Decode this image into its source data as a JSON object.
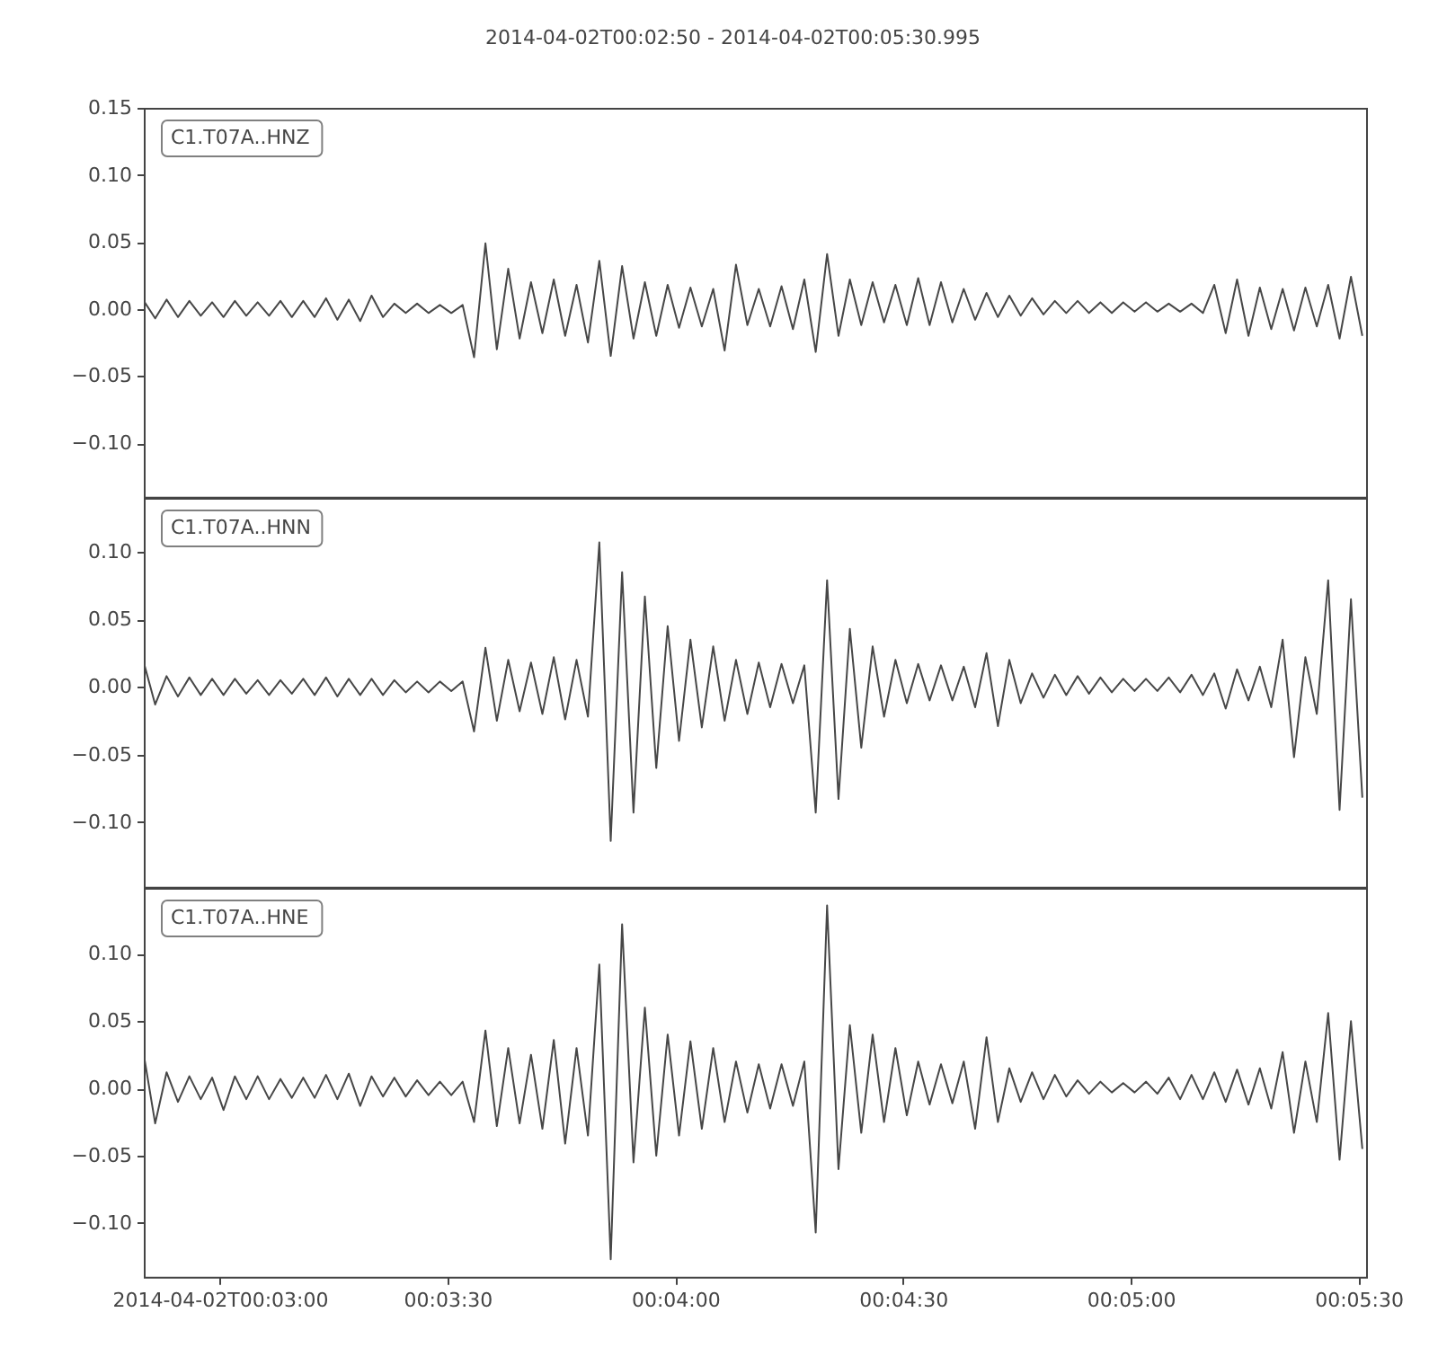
{
  "chart_data": [
    {
      "type": "line",
      "title": "2014-04-02T00:02:50  -  2014-04-02T00:05:30.995",
      "x": [
        "2014-04-02T00:02:50",
        "2014-04-02T00:02:51.5",
        "2014-04-02T00:02:53",
        "2014-04-02T00:02:54.5",
        "2014-04-02T00:02:56",
        "2014-04-02T00:02:57.5",
        "2014-04-02T00:02:59",
        "2014-04-02T00:03:00.5",
        "2014-04-02T00:03:02",
        "2014-04-02T00:03:03.5",
        "2014-04-02T00:03:05",
        "2014-04-02T00:03:06.5",
        "2014-04-02T00:03:08",
        "2014-04-02T00:03:09.5",
        "2014-04-02T00:03:11",
        "2014-04-02T00:03:12.5",
        "2014-04-02T00:03:14",
        "2014-04-02T00:03:15.5",
        "2014-04-02T00:03:17",
        "2014-04-02T00:03:18.5",
        "2014-04-02T00:03:20",
        "2014-04-02T00:03:21.5",
        "2014-04-02T00:03:23",
        "2014-04-02T00:03:24.5",
        "2014-04-02T00:03:26",
        "2014-04-02T00:03:27.5",
        "2014-04-02T00:03:29",
        "2014-04-02T00:03:30.5",
        "2014-04-02T00:03:32",
        "2014-04-02T00:03:33.5",
        "2014-04-02T00:03:35",
        "2014-04-02T00:03:36.5",
        "2014-04-02T00:03:38",
        "2014-04-02T00:03:39.5",
        "2014-04-02T00:03:41",
        "2014-04-02T00:03:42.5",
        "2014-04-02T00:03:44",
        "2014-04-02T00:03:45.5",
        "2014-04-02T00:03:47",
        "2014-04-02T00:03:48.5",
        "2014-04-02T00:03:50",
        "2014-04-02T00:03:51.5",
        "2014-04-02T00:03:53",
        "2014-04-02T00:03:54.5",
        "2014-04-02T00:03:56",
        "2014-04-02T00:03:57.5",
        "2014-04-02T00:03:59",
        "2014-04-02T00:04:00.5",
        "2014-04-02T00:04:02",
        "2014-04-02T00:04:03.5",
        "2014-04-02T00:04:05",
        "2014-04-02T00:04:06.5",
        "2014-04-02T00:04:08",
        "2014-04-02T00:04:09.5",
        "2014-04-02T00:04:11",
        "2014-04-02T00:04:12.5",
        "2014-04-02T00:04:14",
        "2014-04-02T00:04:15.5",
        "2014-04-02T00:04:17",
        "2014-04-02T00:04:18.5",
        "2014-04-02T00:04:20",
        "2014-04-02T00:04:21.5",
        "2014-04-02T00:04:23",
        "2014-04-02T00:04:24.5",
        "2014-04-02T00:04:26",
        "2014-04-02T00:04:27.5",
        "2014-04-02T00:04:29",
        "2014-04-02T00:04:30.5",
        "2014-04-02T00:04:32",
        "2014-04-02T00:04:33.5",
        "2014-04-02T00:04:35",
        "2014-04-02T00:04:36.5",
        "2014-04-02T00:04:38",
        "2014-04-02T00:04:39.5",
        "2014-04-02T00:04:41",
        "2014-04-02T00:04:42.5",
        "2014-04-02T00:04:44",
        "2014-04-02T00:04:45.5",
        "2014-04-02T00:04:47",
        "2014-04-02T00:04:48.5",
        "2014-04-02T00:04:50",
        "2014-04-02T00:04:51.5",
        "2014-04-02T00:04:53",
        "2014-04-02T00:04:54.5",
        "2014-04-02T00:04:56",
        "2014-04-02T00:04:57.5",
        "2014-04-02T00:04:59",
        "2014-04-02T00:05:00.5",
        "2014-04-02T00:05:02",
        "2014-04-02T00:05:03.5",
        "2014-04-02T00:05:05",
        "2014-04-02T00:05:06.5",
        "2014-04-02T00:05:08",
        "2014-04-02T00:05:09.5",
        "2014-04-02T00:05:11",
        "2014-04-02T00:05:12.5",
        "2014-04-02T00:05:14",
        "2014-04-02T00:05:15.5",
        "2014-04-02T00:05:17",
        "2014-04-02T00:05:18.5",
        "2014-04-02T00:05:20",
        "2014-04-02T00:05:21.5",
        "2014-04-02T00:05:23",
        "2014-04-02T00:05:24.5",
        "2014-04-02T00:05:26",
        "2014-04-02T00:05:27.5",
        "2014-04-02T00:05:29",
        "2014-04-02T00:05:30.5"
      ],
      "series": [
        {
          "name": "C1.T07A..HNZ",
          "color": "#474747",
          "values": [
            0.006,
            -0.007,
            0.007,
            -0.006,
            0.006,
            -0.005,
            0.005,
            -0.006,
            0.006,
            -0.005,
            0.005,
            -0.005,
            0.006,
            -0.006,
            0.006,
            -0.006,
            0.008,
            -0.008,
            0.007,
            -0.009,
            0.01,
            -0.006,
            0.004,
            -0.003,
            0.004,
            -0.003,
            0.003,
            -0.003,
            0.003,
            -0.036,
            0.049,
            -0.03,
            0.03,
            -0.022,
            0.02,
            -0.018,
            0.022,
            -0.02,
            0.018,
            -0.025,
            0.036,
            -0.035,
            0.032,
            -0.022,
            0.02,
            -0.02,
            0.018,
            -0.014,
            0.016,
            -0.013,
            0.015,
            -0.031,
            0.033,
            -0.012,
            0.015,
            -0.013,
            0.017,
            -0.015,
            0.022,
            -0.032,
            0.041,
            -0.02,
            0.022,
            -0.012,
            0.02,
            -0.01,
            0.018,
            -0.012,
            0.023,
            -0.012,
            0.02,
            -0.01,
            0.015,
            -0.008,
            0.012,
            -0.006,
            0.01,
            -0.005,
            0.008,
            -0.004,
            0.006,
            -0.003,
            0.006,
            -0.003,
            0.005,
            -0.003,
            0.005,
            -0.002,
            0.005,
            -0.002,
            0.004,
            -0.002,
            0.004,
            -0.003,
            0.018,
            -0.018,
            0.022,
            -0.02,
            0.016,
            -0.015,
            0.015,
            -0.016,
            0.016,
            -0.013,
            0.018,
            -0.022,
            0.024,
            -0.02
          ]
        }
      ],
      "xlim": [
        "2014-04-02T00:02:50",
        "2014-04-02T00:05:30.995"
      ],
      "ylim": [
        -0.14,
        0.15
      ],
      "yticks": [
        {
          "value": -0.1,
          "label": "−0.10"
        },
        {
          "value": -0.05,
          "label": "−0.05"
        },
        {
          "value": 0,
          "label": "0.00"
        },
        {
          "value": 0.05,
          "label": "0.05"
        },
        {
          "value": 0.1,
          "label": "0.10"
        },
        {
          "value": 0.15,
          "label": "0.15"
        }
      ],
      "tick_labels": "y"
    },
    {
      "type": "line",
      "x": [
        "2014-04-02T00:02:50",
        "2014-04-02T00:02:51.5",
        "2014-04-02T00:02:53",
        "2014-04-02T00:02:54.5",
        "2014-04-02T00:02:56",
        "2014-04-02T00:02:57.5",
        "2014-04-02T00:02:59",
        "2014-04-02T00:03:00.5",
        "2014-04-02T00:03:02",
        "2014-04-02T00:03:03.5",
        "2014-04-02T00:03:05",
        "2014-04-02T00:03:06.5",
        "2014-04-02T00:03:08",
        "2014-04-02T00:03:09.5",
        "2014-04-02T00:03:11",
        "2014-04-02T00:03:12.5",
        "2014-04-02T00:03:14",
        "2014-04-02T00:03:15.5",
        "2014-04-02T00:03:17",
        "2014-04-02T00:03:18.5",
        "2014-04-02T00:03:20",
        "2014-04-02T00:03:21.5",
        "2014-04-02T00:03:23",
        "2014-04-02T00:03:24.5",
        "2014-04-02T00:03:26",
        "2014-04-02T00:03:27.5",
        "2014-04-02T00:03:29",
        "2014-04-02T00:03:30.5",
        "2014-04-02T00:03:32",
        "2014-04-02T00:03:33.5",
        "2014-04-02T00:03:35",
        "2014-04-02T00:03:36.5",
        "2014-04-02T00:03:38",
        "2014-04-02T00:03:39.5",
        "2014-04-02T00:03:41",
        "2014-04-02T00:03:42.5",
        "2014-04-02T00:03:44",
        "2014-04-02T00:03:45.5",
        "2014-04-02T00:03:47",
        "2014-04-02T00:03:48.5",
        "2014-04-02T00:03:50",
        "2014-04-02T00:03:51.5",
        "2014-04-02T00:03:53",
        "2014-04-02T00:03:54.5",
        "2014-04-02T00:03:56",
        "2014-04-02T00:03:57.5",
        "2014-04-02T00:03:59",
        "2014-04-02T00:04:00.5",
        "2014-04-02T00:04:02",
        "2014-04-02T00:04:03.5",
        "2014-04-02T00:04:05",
        "2014-04-02T00:04:06.5",
        "2014-04-02T00:04:08",
        "2014-04-02T00:04:09.5",
        "2014-04-02T00:04:11",
        "2014-04-02T00:04:12.5",
        "2014-04-02T00:04:14",
        "2014-04-02T00:04:15.5",
        "2014-04-02T00:04:17",
        "2014-04-02T00:04:18.5",
        "2014-04-02T00:04:20",
        "2014-04-02T00:04:21.5",
        "2014-04-02T00:04:23",
        "2014-04-02T00:04:24.5",
        "2014-04-02T00:04:26",
        "2014-04-02T00:04:27.5",
        "2014-04-02T00:04:29",
        "2014-04-02T00:04:30.5",
        "2014-04-02T00:04:32",
        "2014-04-02T00:04:33.5",
        "2014-04-02T00:04:35",
        "2014-04-02T00:04:36.5",
        "2014-04-02T00:04:38",
        "2014-04-02T00:04:39.5",
        "2014-04-02T00:04:41",
        "2014-04-02T00:04:42.5",
        "2014-04-02T00:04:44",
        "2014-04-02T00:04:45.5",
        "2014-04-02T00:04:47",
        "2014-04-02T00:04:48.5",
        "2014-04-02T00:04:50",
        "2014-04-02T00:04:51.5",
        "2014-04-02T00:04:53",
        "2014-04-02T00:04:54.5",
        "2014-04-02T00:04:56",
        "2014-04-02T00:04:57.5",
        "2014-04-02T00:04:59",
        "2014-04-02T00:05:00.5",
        "2014-04-02T00:05:02",
        "2014-04-02T00:05:03.5",
        "2014-04-02T00:05:05",
        "2014-04-02T00:05:06.5",
        "2014-04-02T00:05:08",
        "2014-04-02T00:05:09.5",
        "2014-04-02T00:05:11",
        "2014-04-02T00:05:12.5",
        "2014-04-02T00:05:14",
        "2014-04-02T00:05:15.5",
        "2014-04-02T00:05:17",
        "2014-04-02T00:05:18.5",
        "2014-04-02T00:05:20",
        "2014-04-02T00:05:21.5",
        "2014-04-02T00:05:23",
        "2014-04-02T00:05:24.5",
        "2014-04-02T00:05:26",
        "2014-04-02T00:05:27.5",
        "2014-04-02T00:05:29",
        "2014-04-02T00:05:30.5"
      ],
      "series": [
        {
          "name": "C1.T07A..HNN",
          "color": "#474747",
          "values": [
            0.018,
            -0.013,
            0.008,
            -0.007,
            0.007,
            -0.006,
            0.006,
            -0.006,
            0.006,
            -0.005,
            0.005,
            -0.006,
            0.005,
            -0.005,
            0.006,
            -0.006,
            0.007,
            -0.007,
            0.006,
            -0.006,
            0.006,
            -0.006,
            0.005,
            -0.004,
            0.004,
            -0.004,
            0.004,
            -0.003,
            0.004,
            -0.033,
            0.029,
            -0.025,
            0.02,
            -0.018,
            0.018,
            -0.02,
            0.022,
            -0.024,
            0.02,
            -0.022,
            0.107,
            -0.114,
            0.085,
            -0.093,
            0.067,
            -0.06,
            0.045,
            -0.04,
            0.035,
            -0.03,
            0.03,
            -0.025,
            0.02,
            -0.02,
            0.018,
            -0.015,
            0.017,
            -0.012,
            0.016,
            -0.093,
            0.079,
            -0.083,
            0.043,
            -0.045,
            0.03,
            -0.022,
            0.02,
            -0.012,
            0.017,
            -0.01,
            0.016,
            -0.01,
            0.015,
            -0.015,
            0.025,
            -0.029,
            0.02,
            -0.012,
            0.01,
            -0.008,
            0.009,
            -0.006,
            0.008,
            -0.005,
            0.007,
            -0.004,
            0.006,
            -0.003,
            0.006,
            -0.003,
            0.007,
            -0.004,
            0.009,
            -0.006,
            0.01,
            -0.016,
            0.013,
            -0.01,
            0.015,
            -0.015,
            0.035,
            -0.052,
            0.022,
            -0.02,
            0.079,
            -0.091,
            0.065,
            -0.082
          ]
        }
      ],
      "xlim": [
        "2014-04-02T00:02:50",
        "2014-04-02T00:05:30.995"
      ],
      "ylim": [
        -0.148,
        0.14
      ],
      "yticks": [
        {
          "value": -0.1,
          "label": "−0.10"
        },
        {
          "value": -0.05,
          "label": "−0.05"
        },
        {
          "value": 0,
          "label": "0.00"
        },
        {
          "value": 0.05,
          "label": "0.05"
        },
        {
          "value": 0.1,
          "label": "0.10"
        }
      ],
      "tick_labels": "y"
    },
    {
      "type": "line",
      "x": [
        "2014-04-02T00:02:50",
        "2014-04-02T00:02:51.5",
        "2014-04-02T00:02:53",
        "2014-04-02T00:02:54.5",
        "2014-04-02T00:02:56",
        "2014-04-02T00:02:57.5",
        "2014-04-02T00:02:59",
        "2014-04-02T00:03:00.5",
        "2014-04-02T00:03:02",
        "2014-04-02T00:03:03.5",
        "2014-04-02T00:03:05",
        "2014-04-02T00:03:06.5",
        "2014-04-02T00:03:08",
        "2014-04-02T00:03:09.5",
        "2014-04-02T00:03:11",
        "2014-04-02T00:03:12.5",
        "2014-04-02T00:03:14",
        "2014-04-02T00:03:15.5",
        "2014-04-02T00:03:17",
        "2014-04-02T00:03:18.5",
        "2014-04-02T00:03:20",
        "2014-04-02T00:03:21.5",
        "2014-04-02T00:03:23",
        "2014-04-02T00:03:24.5",
        "2014-04-02T00:03:26",
        "2014-04-02T00:03:27.5",
        "2014-04-02T00:03:29",
        "2014-04-02T00:03:30.5",
        "2014-04-02T00:03:32",
        "2014-04-02T00:03:33.5",
        "2014-04-02T00:03:35",
        "2014-04-02T00:03:36.5",
        "2014-04-02T00:03:38",
        "2014-04-02T00:03:39.5",
        "2014-04-02T00:03:41",
        "2014-04-02T00:03:42.5",
        "2014-04-02T00:03:44",
        "2014-04-02T00:03:45.5",
        "2014-04-02T00:03:47",
        "2014-04-02T00:03:48.5",
        "2014-04-02T00:03:50",
        "2014-04-02T00:03:51.5",
        "2014-04-02T00:03:53",
        "2014-04-02T00:03:54.5",
        "2014-04-02T00:03:56",
        "2014-04-02T00:03:57.5",
        "2014-04-02T00:03:59",
        "2014-04-02T00:04:00.5",
        "2014-04-02T00:04:02",
        "2014-04-02T00:04:03.5",
        "2014-04-02T00:04:05",
        "2014-04-02T00:04:06.5",
        "2014-04-02T00:04:08",
        "2014-04-02T00:04:09.5",
        "2014-04-02T00:04:11",
        "2014-04-02T00:04:12.5",
        "2014-04-02T00:04:14",
        "2014-04-02T00:04:15.5",
        "2014-04-02T00:04:17",
        "2014-04-02T00:04:18.5",
        "2014-04-02T00:04:20",
        "2014-04-02T00:04:21.5",
        "2014-04-02T00:04:23",
        "2014-04-02T00:04:24.5",
        "2014-04-02T00:04:26",
        "2014-04-02T00:04:27.5",
        "2014-04-02T00:04:29",
        "2014-04-02T00:04:30.5",
        "2014-04-02T00:04:32",
        "2014-04-02T00:04:33.5",
        "2014-04-02T00:04:35",
        "2014-04-02T00:04:36.5",
        "2014-04-02T00:04:38",
        "2014-04-02T00:04:39.5",
        "2014-04-02T00:04:41",
        "2014-04-02T00:04:42.5",
        "2014-04-02T00:04:44",
        "2014-04-02T00:04:45.5",
        "2014-04-02T00:04:47",
        "2014-04-02T00:04:48.5",
        "2014-04-02T00:04:50",
        "2014-04-02T00:04:51.5",
        "2014-04-02T00:04:53",
        "2014-04-02T00:04:54.5",
        "2014-04-02T00:04:56",
        "2014-04-02T00:04:57.5",
        "2014-04-02T00:04:59",
        "2014-04-02T00:05:00.5",
        "2014-04-02T00:05:02",
        "2014-04-02T00:05:03.5",
        "2014-04-02T00:05:05",
        "2014-04-02T00:05:06.5",
        "2014-04-02T00:05:08",
        "2014-04-02T00:05:09.5",
        "2014-04-02T00:05:11",
        "2014-04-02T00:05:12.5",
        "2014-04-02T00:05:14",
        "2014-04-02T00:05:15.5",
        "2014-04-02T00:05:17",
        "2014-04-02T00:05:18.5",
        "2014-04-02T00:05:20",
        "2014-04-02T00:05:21.5",
        "2014-04-02T00:05:23",
        "2014-04-02T00:05:24.5",
        "2014-04-02T00:05:26",
        "2014-04-02T00:05:27.5",
        "2014-04-02T00:05:29",
        "2014-04-02T00:05:30.5"
      ],
      "series": [
        {
          "name": "C1.T07A..HNE",
          "color": "#474747",
          "values": [
            0.025,
            -0.026,
            0.012,
            -0.01,
            0.009,
            -0.008,
            0.008,
            -0.016,
            0.009,
            -0.008,
            0.009,
            -0.008,
            0.007,
            -0.007,
            0.008,
            -0.007,
            0.01,
            -0.008,
            0.011,
            -0.013,
            0.009,
            -0.006,
            0.008,
            -0.006,
            0.006,
            -0.005,
            0.005,
            -0.005,
            0.005,
            -0.025,
            0.043,
            -0.028,
            0.03,
            -0.026,
            0.025,
            -0.03,
            0.036,
            -0.041,
            0.03,
            -0.035,
            0.092,
            -0.127,
            0.122,
            -0.055,
            0.06,
            -0.05,
            0.04,
            -0.035,
            0.035,
            -0.03,
            0.03,
            -0.025,
            0.02,
            -0.018,
            0.018,
            -0.015,
            0.018,
            -0.013,
            0.02,
            -0.107,
            0.136,
            -0.06,
            0.047,
            -0.033,
            0.04,
            -0.025,
            0.03,
            -0.02,
            0.02,
            -0.012,
            0.018,
            -0.011,
            0.02,
            -0.03,
            0.038,
            -0.025,
            0.015,
            -0.01,
            0.012,
            -0.008,
            0.01,
            -0.006,
            0.006,
            -0.004,
            0.005,
            -0.003,
            0.004,
            -0.003,
            0.005,
            -0.004,
            0.008,
            -0.008,
            0.01,
            -0.008,
            0.012,
            -0.01,
            0.014,
            -0.012,
            0.015,
            -0.015,
            0.027,
            -0.033,
            0.02,
            -0.025,
            0.056,
            -0.053,
            0.05,
            -0.045
          ]
        }
      ],
      "xlim": [
        "2014-04-02T00:02:50",
        "2014-04-02T00:05:30.995"
      ],
      "xticks": [
        {
          "value": "2014-04-02T00:03:00",
          "label": "2014-04-02T00:03:00"
        },
        {
          "value": "2014-04-02T00:03:30",
          "label": "00:03:30"
        },
        {
          "value": "2014-04-02T00:04:00",
          "label": "00:04:00"
        },
        {
          "value": "2014-04-02T00:04:30",
          "label": "00:04:30"
        },
        {
          "value": "2014-04-02T00:05:00",
          "label": "00:05:00"
        },
        {
          "value": "2014-04-02T00:05:30",
          "label": "00:05:30"
        }
      ],
      "ylim": [
        -0.14,
        0.149
      ],
      "yticks": [
        {
          "value": -0.1,
          "label": "−0.10"
        },
        {
          "value": -0.05,
          "label": "−0.05"
        },
        {
          "value": 0,
          "label": "0.00"
        },
        {
          "value": 0.05,
          "label": "0.05"
        },
        {
          "value": 0.1,
          "label": "0.10"
        }
      ]
    }
  ]
}
